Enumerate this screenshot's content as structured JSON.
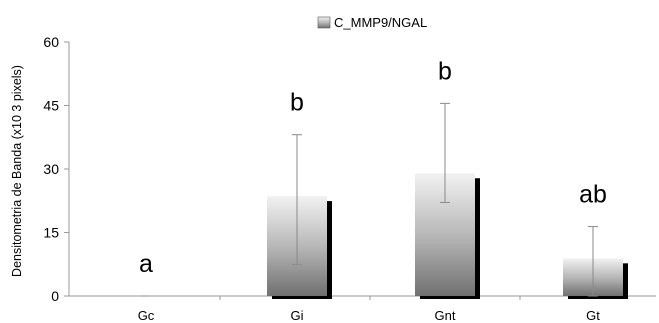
{
  "chart_data": {
    "type": "bar",
    "title": "",
    "xlabel": "",
    "ylabel": "Densitometria de Banda (x10 3 pixels)",
    "ylim": [
      0,
      60
    ],
    "yticks": [
      0,
      15,
      30,
      45,
      60
    ],
    "grid": false,
    "legend_position": "top",
    "categories": [
      "Gc",
      "Gi",
      "Gnt",
      "Gt"
    ],
    "series": [
      {
        "name": "C_MMP9/NGAL",
        "values": [
          0,
          23.6,
          29.0,
          8.9
        ],
        "error_low": [
          0,
          7.4,
          22.1,
          0
        ],
        "error_high": [
          0,
          38.1,
          45.5,
          16.4
        ],
        "significance_labels": [
          "a",
          "b",
          "b",
          "ab"
        ]
      }
    ]
  },
  "colors": {
    "bar_top": "#f2f2f2",
    "bar_mid": "#b8b8b8",
    "bar_bottom": "#707070",
    "bar_shadow": "#000000",
    "axis": "#9a9a9a",
    "text": "#000000"
  }
}
